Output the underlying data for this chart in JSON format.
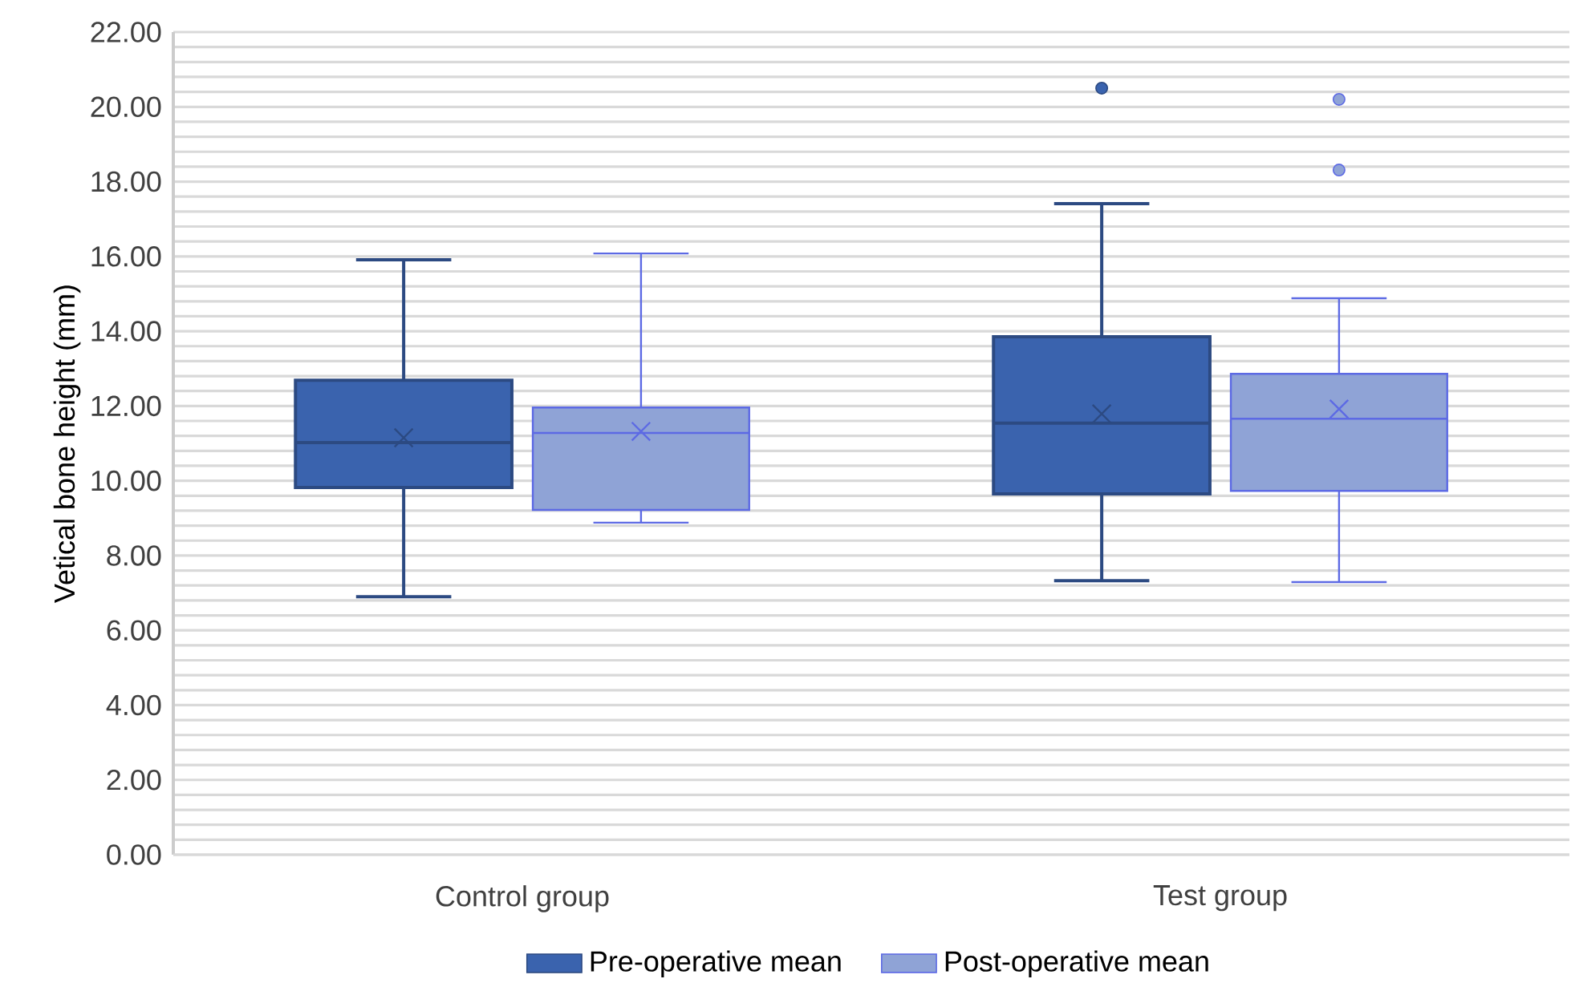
{
  "chart_data": {
    "type": "box",
    "ylabel": "Vetical bone height (mm)",
    "categories": [
      "Control group",
      "Test group"
    ],
    "series": [
      {
        "name": "Pre-operative mean",
        "color": "#3a63ae",
        "boxes": [
          {
            "low": 6.9,
            "q1": 9.82,
            "median": 11.02,
            "q3": 12.69,
            "high": 15.91,
            "mean": 11.15
          },
          {
            "low": 7.33,
            "q1": 9.65,
            "median": 11.54,
            "q3": 13.85,
            "high": 17.41,
            "mean": 11.79,
            "outliers": [
              20.5
            ]
          }
        ]
      },
      {
        "name": "Post-operative mean",
        "color": "#8fa3d6",
        "boxes": [
          {
            "low": 8.88,
            "q1": 9.22,
            "median": 11.28,
            "q3": 11.96,
            "high": 16.08,
            "mean": 11.32
          },
          {
            "low": 7.29,
            "q1": 9.73,
            "median": 11.66,
            "q3": 12.86,
            "high": 14.88,
            "mean": 11.92,
            "outliers": [
              20.2,
              18.31
            ]
          }
        ]
      }
    ],
    "ylim": [
      0,
      22
    ],
    "yticks": [
      {
        "value": 0,
        "label": "0.00"
      },
      {
        "value": 2,
        "label": "2.00"
      },
      {
        "value": 4,
        "label": "4.00"
      },
      {
        "value": 6,
        "label": "6.00"
      },
      {
        "value": 8,
        "label": "8.00"
      },
      {
        "value": 10,
        "label": "10.00"
      },
      {
        "value": 12,
        "label": "12.00"
      },
      {
        "value": 14,
        "label": "14.00"
      },
      {
        "value": 16,
        "label": "16.00"
      },
      {
        "value": 18,
        "label": "18.00"
      },
      {
        "value": 20,
        "label": "20.00"
      },
      {
        "value": 22,
        "label": "22.00"
      }
    ],
    "grid": true,
    "legend": "bottom"
  }
}
